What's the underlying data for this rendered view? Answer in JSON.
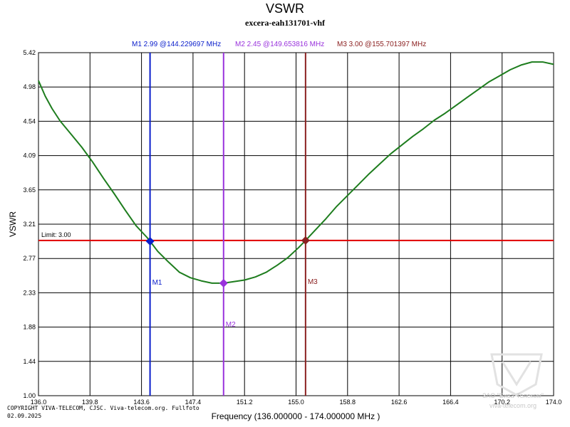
{
  "chart_data": {
    "type": "line",
    "title": "VSWR",
    "subtitle": "excera-eah131701-vhf",
    "xlabel": "Frequency (136.000000 - 174.000000 MHz )",
    "ylabel": "VSWR",
    "xlim": [
      136.0,
      174.0
    ],
    "ylim": [
      1.0,
      5.42
    ],
    "x_ticks": [
      "136.0",
      "139.8",
      "143.6",
      "147.4",
      "151.2",
      "155.0",
      "158.8",
      "162.6",
      "166.4",
      "170.2",
      "174.0"
    ],
    "y_ticks": [
      "1.00",
      "1.44",
      "1.88",
      "2.33",
      "2.77",
      "3.21",
      "3.65",
      "4.09",
      "4.54",
      "4.98",
      "5.42"
    ],
    "limit": {
      "label": "Limit: 3.00",
      "value": 3.0,
      "color": "#e00000"
    },
    "series": [
      {
        "name": "VSWR",
        "color": "#1e7d1e",
        "x": [
          136.0,
          136.5,
          137.0,
          137.6,
          138.4,
          139.2,
          140.0,
          140.8,
          141.6,
          142.4,
          143.2,
          144.0,
          144.23,
          144.8,
          145.6,
          146.4,
          147.2,
          148.0,
          148.8,
          149.65,
          150.4,
          151.2,
          152.0,
          152.8,
          153.6,
          154.4,
          155.2,
          155.7,
          156.4,
          157.2,
          158.0,
          158.8,
          159.6,
          160.4,
          161.2,
          162.0,
          162.8,
          163.6,
          164.4,
          165.2,
          166.0,
          166.8,
          167.6,
          168.4,
          169.2,
          170.0,
          170.8,
          171.6,
          172.4,
          173.2,
          174.0
        ],
        "y": [
          5.06,
          4.86,
          4.7,
          4.54,
          4.37,
          4.2,
          4.01,
          3.8,
          3.6,
          3.39,
          3.19,
          3.04,
          2.99,
          2.86,
          2.72,
          2.59,
          2.52,
          2.48,
          2.45,
          2.45,
          2.47,
          2.49,
          2.53,
          2.59,
          2.68,
          2.78,
          2.91,
          3.0,
          3.13,
          3.28,
          3.44,
          3.58,
          3.72,
          3.86,
          3.99,
          4.12,
          4.23,
          4.34,
          4.44,
          4.55,
          4.64,
          4.74,
          4.84,
          4.94,
          5.04,
          5.12,
          5.2,
          5.26,
          5.3,
          5.3,
          5.27
        ]
      }
    ],
    "markers": [
      {
        "id": "M1",
        "label": "M1",
        "header": "M1  2.99 @144.229697 MHz",
        "freq": 144.229697,
        "vswr": 2.99,
        "color": "#0a1ecb"
      },
      {
        "id": "M2",
        "label": "M2",
        "header": "M2  2.45 @149.653816 MHz",
        "freq": 149.653816,
        "vswr": 2.45,
        "color": "#9932dc"
      },
      {
        "id": "M3",
        "label": "M3",
        "header": "M3  3.00 @155.701397 MHz",
        "freq": 155.701397,
        "vswr": 3.0,
        "color": "#8b2020"
      }
    ]
  },
  "copyright": {
    "line1": "COPYRIGHT VIVA-TELECOM, CJSC. Viva-telecom.org. Fullfoto",
    "line2": "02.09.2025"
  },
  "watermark": {
    "line1": "ЗАО \"Вива-Телеком\"",
    "line2": "viva-telecom.org"
  }
}
